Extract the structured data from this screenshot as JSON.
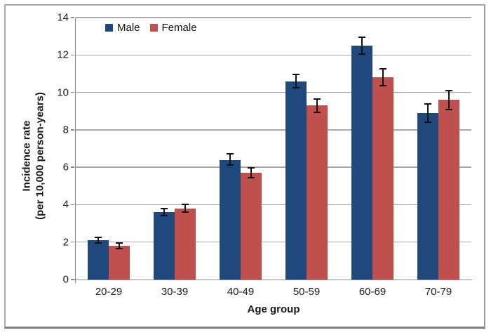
{
  "chart_data": {
    "type": "bar",
    "title": "",
    "categories": [
      "20-29",
      "30-39",
      "40-49",
      "50-59",
      "60-69",
      "70-79"
    ],
    "series": [
      {
        "name": "Male",
        "color": "#1F497D",
        "values": [
          2.1,
          3.6,
          6.4,
          10.6,
          12.5,
          8.9
        ],
        "errors": [
          0.15,
          0.2,
          0.3,
          0.35,
          0.45,
          0.5
        ]
      },
      {
        "name": "Female",
        "color": "#C0504D",
        "values": [
          1.8,
          3.8,
          5.7,
          9.3,
          10.8,
          9.6
        ],
        "errors": [
          0.15,
          0.2,
          0.25,
          0.35,
          0.45,
          0.5
        ]
      }
    ],
    "xlabel": "Age group",
    "ylabel_line1": "Incidence rate",
    "ylabel_line2": "(per 10,000 person-years)",
    "ylim": [
      0,
      14
    ],
    "yticks": [
      0,
      2,
      4,
      6,
      8,
      10,
      12,
      14
    ],
    "grid": true,
    "legend_position": "inside-top-left",
    "error_bars": true,
    "error_bar_color": "#111111",
    "gridline_color": "#a9a9a9",
    "axis_color": "#8a8a8a",
    "frame_border_color": "#a8a8a8"
  }
}
